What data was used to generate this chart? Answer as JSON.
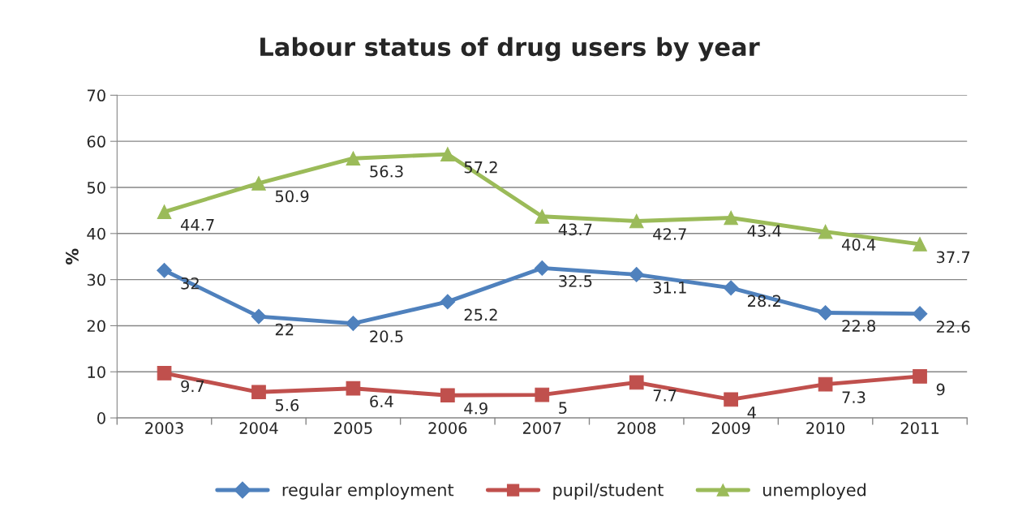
{
  "chart_data": {
    "type": "line",
    "title": "Labour status of drug users by year",
    "ylabel": "%",
    "categories": [
      "2003",
      "2004",
      "2005",
      "2006",
      "2007",
      "2008",
      "2009",
      "2010",
      "2011"
    ],
    "series": [
      {
        "name": "regular employment",
        "color": "#4f81bd",
        "marker": "diamond",
        "values": [
          32,
          22,
          20.5,
          25.2,
          32.5,
          31.1,
          28.2,
          22.8,
          22.6
        ]
      },
      {
        "name": "pupil/student",
        "color": "#c0504d",
        "marker": "square",
        "values": [
          9.7,
          5.6,
          6.4,
          4.9,
          5,
          7.7,
          4,
          7.3,
          9
        ]
      },
      {
        "name": "unemployed",
        "color": "#9bbb59",
        "marker": "triangle",
        "values": [
          44.7,
          50.9,
          56.3,
          57.2,
          43.7,
          42.7,
          43.4,
          40.4,
          37.7
        ]
      }
    ],
    "ylim": [
      0,
      70
    ],
    "yticks": [
      0,
      10,
      20,
      30,
      40,
      50,
      60,
      70
    ],
    "grid": "y",
    "legend": "bottom",
    "data_labels": true,
    "line_style": "solid"
  }
}
